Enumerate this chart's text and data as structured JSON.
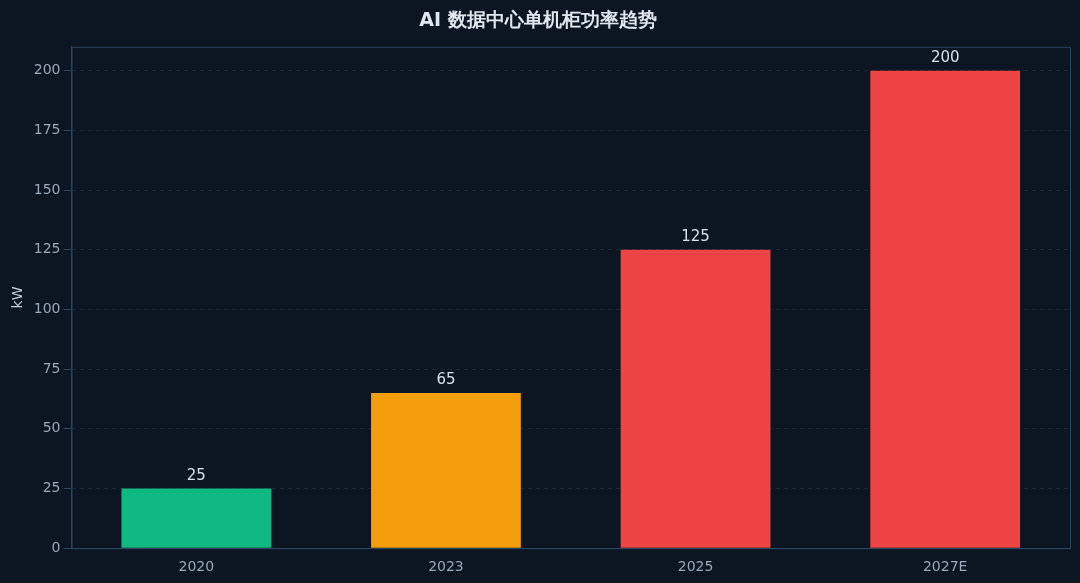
{
  "chart_data": {
    "type": "bar",
    "title": "AI 数据中心单机柜功率趋势",
    "ylabel": "kW",
    "categories": [
      "2020",
      "2023",
      "2025",
      "2027E"
    ],
    "values": [
      25,
      65,
      125,
      200
    ],
    "colors": [
      "#10b981",
      "#f59e0b",
      "#ef4444",
      "#ef4444"
    ],
    "ylim": [
      0,
      210
    ],
    "yticks": [
      0,
      25,
      50,
      75,
      100,
      125,
      150,
      175,
      200
    ],
    "grid": "y",
    "legend": false,
    "data_labels": true
  }
}
